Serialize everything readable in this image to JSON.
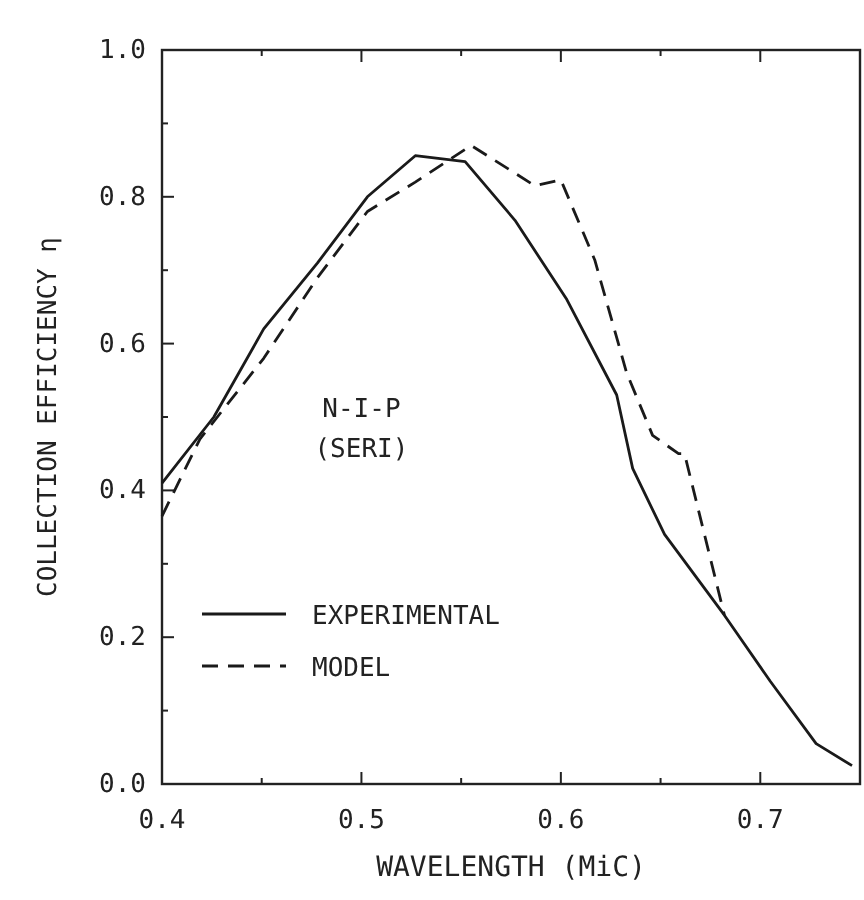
{
  "chart_data": {
    "type": "line",
    "xlabel": "WAVELENGTH (MiC)",
    "ylabel": "COLLECTION EFFICIENCY η",
    "annotations": [
      "N-I-P",
      "(SERI)"
    ],
    "xlim": [
      0.4,
      0.75
    ],
    "ylim": [
      0,
      1
    ],
    "xticks": [
      {
        "value": 0.4,
        "label": "0.4"
      },
      {
        "value": 0.45,
        "label": null
      },
      {
        "value": 0.5,
        "label": "0.5"
      },
      {
        "value": 0.55,
        "label": null
      },
      {
        "value": 0.6,
        "label": "0.6"
      },
      {
        "value": 0.65,
        "label": null
      },
      {
        "value": 0.7,
        "label": "0.7"
      }
    ],
    "yticks": [
      {
        "value": 0,
        "label": "0.0"
      },
      {
        "value": 0.1,
        "label": null
      },
      {
        "value": 0.2,
        "label": "0.2"
      },
      {
        "value": 0.3,
        "label": null
      },
      {
        "value": 0.4,
        "label": "0.4"
      },
      {
        "value": 0.5,
        "label": null
      },
      {
        "value": 0.6,
        "label": "0.6"
      },
      {
        "value": 0.7,
        "label": null
      },
      {
        "value": 0.8,
        "label": "0.8"
      },
      {
        "value": 0.9,
        "label": null
      },
      {
        "value": 1,
        "label": "1.0"
      }
    ],
    "legend": "bottom left",
    "grid": false,
    "series": [
      {
        "name": "EXPERIMENTAL",
        "color": "#1a1a1a",
        "line_style": "solid",
        "x": [
          0.4,
          0.426,
          0.451,
          0.478,
          0.503,
          0.527,
          0.552,
          0.577,
          0.603,
          0.628,
          0.636,
          0.652,
          0.682,
          0.705,
          0.728,
          0.746
        ],
        "values": [
          0.41,
          0.5,
          0.62,
          0.71,
          0.8,
          0.856,
          0.848,
          0.768,
          0.66,
          0.53,
          0.43,
          0.34,
          0.23,
          0.14,
          0.055,
          0.025
        ]
      },
      {
        "name": "MODEL",
        "color": "#1a1a1a",
        "line_style": "dashed",
        "x": [
          0.4,
          0.419,
          0.451,
          0.478,
          0.503,
          0.527,
          0.555,
          0.587,
          0.6,
          0.617,
          0.633,
          0.646,
          0.659,
          0.662,
          0.682
        ],
        "values": [
          0.365,
          0.47,
          0.58,
          0.69,
          0.78,
          0.82,
          0.87,
          0.815,
          0.823,
          0.714,
          0.56,
          0.475,
          0.45,
          0.45,
          0.23
        ]
      }
    ]
  }
}
